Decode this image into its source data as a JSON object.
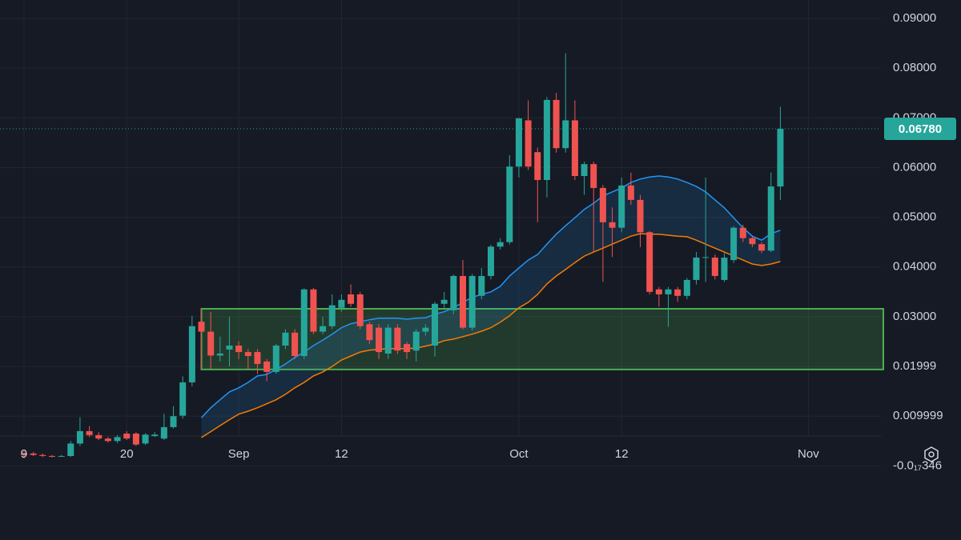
{
  "chart_data": {
    "type": "candlestick",
    "up_color": "#26a69a",
    "down_color": "#ef5350",
    "grid": true,
    "xlim": [
      -2.57,
      91.77
    ],
    "ylim": [
      -0.0149,
      0.0937
    ],
    "xticks": [
      {
        "value": 0,
        "label": "9"
      },
      {
        "value": 11,
        "label": "20"
      },
      {
        "value": 23,
        "label": "Sep"
      },
      {
        "value": 34,
        "label": "12"
      },
      {
        "value": 53,
        "label": "Oct"
      },
      {
        "value": 64,
        "label": "12"
      },
      {
        "value": 84,
        "label": "Nov"
      }
    ],
    "yticks": [
      {
        "value": 0.09,
        "label": "0.09000"
      },
      {
        "value": 0.08,
        "label": "0.08000"
      },
      {
        "value": 0.07,
        "label": "0.07000"
      },
      {
        "value": 0.06,
        "label": "0.06000"
      },
      {
        "value": 0.05,
        "label": "0.05000"
      },
      {
        "value": 0.04,
        "label": "0.04000"
      },
      {
        "value": 0.03,
        "label": "0.03000"
      },
      {
        "value": 0.01999,
        "label": "0.01999"
      },
      {
        "value": 0.009999,
        "label": "0.009999"
      },
      {
        "value": -3.46e-18,
        "label": "-0.0₁₇346"
      }
    ],
    "x": [
      0,
      1,
      2,
      3,
      4,
      5,
      6,
      7,
      8,
      9,
      10,
      11,
      12,
      13,
      14,
      15,
      16,
      17,
      18,
      19,
      20,
      21,
      22,
      23,
      24,
      25,
      26,
      27,
      28,
      29,
      30,
      31,
      32,
      33,
      34,
      35,
      36,
      37,
      38,
      39,
      40,
      41,
      42,
      43,
      44,
      45,
      46,
      47,
      48,
      49,
      50,
      51,
      52,
      53,
      54,
      55,
      56,
      57,
      58,
      59,
      60,
      61,
      62,
      63,
      64,
      65,
      66,
      67,
      68,
      69,
      70,
      71,
      72,
      73,
      74,
      75,
      76,
      77,
      78,
      79,
      80,
      81
    ],
    "open": [
      0.0025,
      0.0025,
      0.0022,
      0.002,
      0.0019,
      0.002,
      0.0045,
      0.007,
      0.0062,
      0.0055,
      0.005,
      0.0065,
      0.0065,
      0.0045,
      0.006,
      0.0055,
      0.0078,
      0.0101,
      0.0168,
      0.029,
      0.027,
      0.0222,
      0.0234,
      0.0242,
      0.0229,
      0.0229,
      0.021,
      0.0189,
      0.0242,
      0.0268,
      0.0221,
      0.0355,
      0.027,
      0.0281,
      0.0318,
      0.0345,
      0.0345,
      0.0285,
      0.0278,
      0.0226,
      0.0278,
      0.0245,
      0.0232,
      0.027,
      0.0242,
      0.0326,
      0.0313,
      0.0382,
      0.0278,
      0.0342,
      0.0382,
      0.0441,
      0.045,
      0.0602,
      0.0695,
      0.0631,
      0.0575,
      0.0736,
      0.0639,
      0.0695,
      0.0583,
      0.0607,
      0.0559,
      0.049,
      0.0479,
      0.0564,
      0.0535,
      0.047,
      0.0355,
      0.0345,
      0.0355,
      0.0342,
      0.0374,
      0.0419,
      0.0419,
      0.0374,
      0.0414,
      0.0479,
      0.0458,
      0.0446,
      0.0433,
      0.0562
    ],
    "high": [
      0.003,
      0.0028,
      0.0025,
      0.0022,
      0.0022,
      0.005,
      0.0098,
      0.008,
      0.0068,
      0.0058,
      0.0062,
      0.007,
      0.0068,
      0.0066,
      0.0068,
      0.0105,
      0.012,
      0.018,
      0.0302,
      0.0316,
      0.031,
      0.026,
      0.03,
      0.025,
      0.0235,
      0.0235,
      0.0215,
      0.0245,
      0.0275,
      0.0275,
      0.0357,
      0.0358,
      0.03,
      0.0345,
      0.0345,
      0.0365,
      0.035,
      0.029,
      0.0285,
      0.0285,
      0.0285,
      0.025,
      0.0275,
      0.0285,
      0.033,
      0.035,
      0.0385,
      0.0414,
      0.0386,
      0.0398,
      0.0445,
      0.0458,
      0.0625,
      0.07,
      0.0735,
      0.064,
      0.0742,
      0.075,
      0.083,
      0.0735,
      0.0612,
      0.0612,
      0.0565,
      0.052,
      0.058,
      0.059,
      0.0545,
      0.0472,
      0.036,
      0.036,
      0.036,
      0.0378,
      0.043,
      0.058,
      0.0425,
      0.0428,
      0.0482,
      0.0485,
      0.0462,
      0.045,
      0.059,
      0.0722
    ],
    "low": [
      0.0015,
      0.002,
      0.0018,
      0.0017,
      0.0018,
      0.0018,
      0.004,
      0.0058,
      0.0052,
      0.0047,
      0.0046,
      0.0052,
      0.004,
      0.0042,
      0.0058,
      0.0052,
      0.0075,
      0.0095,
      0.016,
      0.0194,
      0.0195,
      0.021,
      0.02,
      0.0215,
      0.0195,
      0.0185,
      0.017,
      0.0185,
      0.0235,
      0.0215,
      0.0215,
      0.0265,
      0.0265,
      0.0275,
      0.031,
      0.032,
      0.0275,
      0.0245,
      0.0215,
      0.0215,
      0.0225,
      0.0215,
      0.021,
      0.0262,
      0.022,
      0.0318,
      0.0305,
      0.0275,
      0.0272,
      0.0335,
      0.0375,
      0.0435,
      0.0445,
      0.058,
      0.0595,
      0.049,
      0.054,
      0.063,
      0.063,
      0.0575,
      0.0545,
      0.043,
      0.037,
      0.042,
      0.047,
      0.0525,
      0.044,
      0.0345,
      0.032,
      0.028,
      0.033,
      0.0335,
      0.0365,
      0.037,
      0.0375,
      0.037,
      0.0408,
      0.045,
      0.044,
      0.0428,
      0.043,
      0.0535
    ],
    "close": [
      0.0022,
      0.0022,
      0.002,
      0.0019,
      0.002,
      0.0045,
      0.007,
      0.0062,
      0.0055,
      0.005,
      0.0058,
      0.0055,
      0.0043,
      0.0063,
      0.0063,
      0.0078,
      0.01,
      0.0168,
      0.0281,
      0.027,
      0.0222,
      0.0226,
      0.0242,
      0.0229,
      0.0221,
      0.0205,
      0.0189,
      0.0242,
      0.0268,
      0.0221,
      0.0355,
      0.027,
      0.0281,
      0.0323,
      0.0334,
      0.0326,
      0.0281,
      0.0253,
      0.0229,
      0.0278,
      0.0232,
      0.0229,
      0.027,
      0.0278,
      0.0326,
      0.0334,
      0.0382,
      0.0278,
      0.0382,
      0.0382,
      0.0441,
      0.045,
      0.0602,
      0.0699,
      0.0602,
      0.0575,
      0.0736,
      0.0639,
      0.0695,
      0.0583,
      0.0607,
      0.0559,
      0.049,
      0.0479,
      0.0564,
      0.0535,
      0.047,
      0.035,
      0.0345,
      0.0355,
      0.0342,
      0.0374,
      0.0419,
      0.042,
      0.0382,
      0.0419,
      0.0479,
      0.0458,
      0.0446,
      0.0433,
      0.0562,
      0.0678
    ],
    "lines": [
      {
        "color": "#2196f3",
        "values": [
          null,
          null,
          null,
          null,
          null,
          null,
          null,
          null,
          null,
          null,
          null,
          null,
          null,
          null,
          null,
          null,
          null,
          null,
          null,
          0.0097,
          0.0117,
          0.0133,
          0.0149,
          0.0157,
          0.0168,
          0.0181,
          0.0184,
          0.0194,
          0.0205,
          0.0218,
          0.0229,
          0.0242,
          0.0253,
          0.0265,
          0.0278,
          0.0286,
          0.029,
          0.0294,
          0.0297,
          0.0297,
          0.0297,
          0.0295,
          0.0297,
          0.0298,
          0.0305,
          0.031,
          0.0318,
          0.0329,
          0.0339,
          0.0345,
          0.035,
          0.0361,
          0.0382,
          0.0398,
          0.0414,
          0.0425,
          0.0446,
          0.0466,
          0.0483,
          0.0499,
          0.0516,
          0.0528,
          0.0543,
          0.0551,
          0.0559,
          0.057,
          0.0577,
          0.0581,
          0.0583,
          0.0581,
          0.0577,
          0.057,
          0.0562,
          0.0551,
          0.0535,
          0.0519,
          0.0499,
          0.0479,
          0.0462,
          0.0454,
          0.0467,
          0.0474
        ]
      },
      {
        "color": "#f57c00",
        "values": [
          null,
          null,
          null,
          null,
          null,
          null,
          null,
          null,
          null,
          null,
          null,
          null,
          null,
          null,
          null,
          null,
          null,
          null,
          null,
          0.0057,
          0.0069,
          0.0081,
          0.0093,
          0.0104,
          0.011,
          0.0117,
          0.0125,
          0.0133,
          0.0144,
          0.0157,
          0.0168,
          0.0181,
          0.0189,
          0.02,
          0.0213,
          0.0221,
          0.0229,
          0.0233,
          0.0234,
          0.0236,
          0.0236,
          0.0236,
          0.0237,
          0.0241,
          0.0245,
          0.0252,
          0.0255,
          0.026,
          0.0265,
          0.0271,
          0.0278,
          0.0289,
          0.0302,
          0.0318,
          0.0329,
          0.0345,
          0.0366,
          0.0382,
          0.0395,
          0.0409,
          0.0422,
          0.043,
          0.0438,
          0.0446,
          0.0454,
          0.0462,
          0.0467,
          0.0466,
          0.0466,
          0.0464,
          0.0462,
          0.0461,
          0.0454,
          0.0446,
          0.0438,
          0.043,
          0.0422,
          0.0414,
          0.0406,
          0.0403,
          0.0406,
          0.0411
        ]
      }
    ],
    "zone": {
      "y": [
        0.0194,
        0.0316
      ],
      "x_start": 19,
      "color": "#4caf50"
    },
    "last_price": {
      "value": 0.0678,
      "label": "0.06780"
    }
  }
}
